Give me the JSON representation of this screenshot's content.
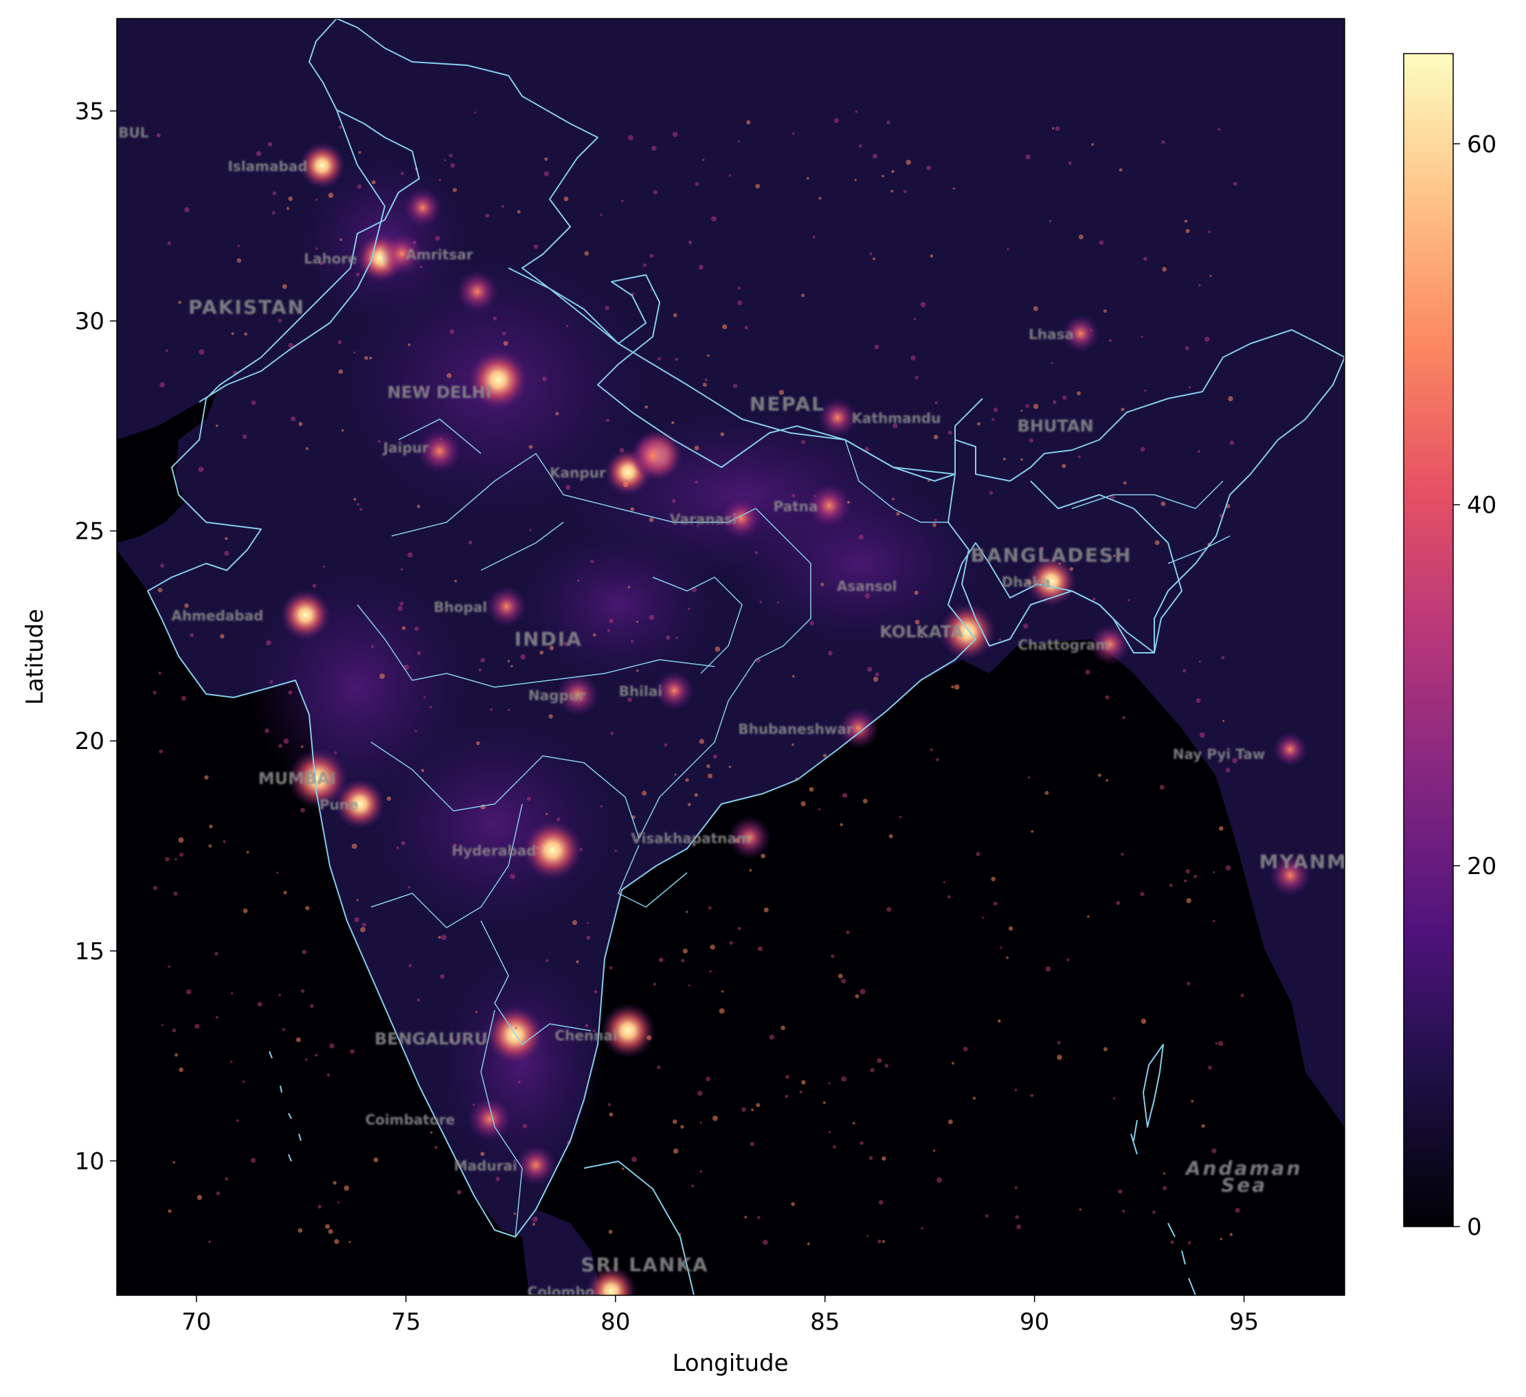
{
  "chart_data": {
    "type": "heatmap",
    "title": "",
    "xlabel": "Longitude",
    "ylabel": "Latitude",
    "xlim": [
      68.1,
      97.4
    ],
    "ylim": [
      6.8,
      37.2
    ],
    "xticks": [
      70,
      75,
      80,
      85,
      90,
      95
    ],
    "yticks": [
      10,
      15,
      20,
      25,
      30,
      35
    ],
    "colormap": "magma",
    "colorbar": {
      "min": 0,
      "max": 65,
      "ticks": [
        0,
        20,
        40,
        60
      ]
    },
    "background_color": "#180f3d",
    "border_color": "#87ceeb",
    "grid": false,
    "bright_spots": [
      {
        "lon": 77.2,
        "lat": 28.6,
        "value": 62
      },
      {
        "lon": 73.0,
        "lat": 33.7,
        "value": 45
      },
      {
        "lon": 74.4,
        "lat": 31.5,
        "value": 48
      },
      {
        "lon": 74.9,
        "lat": 31.6,
        "value": 40
      },
      {
        "lon": 75.8,
        "lat": 26.9,
        "value": 42
      },
      {
        "lon": 80.3,
        "lat": 26.4,
        "value": 45
      },
      {
        "lon": 81.0,
        "lat": 26.8,
        "value": 50
      },
      {
        "lon": 83.0,
        "lat": 25.3,
        "value": 38
      },
      {
        "lon": 85.1,
        "lat": 25.6,
        "value": 42
      },
      {
        "lon": 88.4,
        "lat": 22.6,
        "value": 58
      },
      {
        "lon": 90.4,
        "lat": 23.8,
        "value": 50
      },
      {
        "lon": 91.8,
        "lat": 22.3,
        "value": 38
      },
      {
        "lon": 72.6,
        "lat": 23.0,
        "value": 50
      },
      {
        "lon": 77.4,
        "lat": 23.2,
        "value": 38
      },
      {
        "lon": 79.1,
        "lat": 21.1,
        "value": 40
      },
      {
        "lon": 81.4,
        "lat": 21.2,
        "value": 36
      },
      {
        "lon": 85.8,
        "lat": 20.3,
        "value": 38
      },
      {
        "lon": 72.9,
        "lat": 19.1,
        "value": 62
      },
      {
        "lon": 73.9,
        "lat": 18.5,
        "value": 50
      },
      {
        "lon": 78.5,
        "lat": 17.4,
        "value": 62
      },
      {
        "lon": 83.2,
        "lat": 17.7,
        "value": 40
      },
      {
        "lon": 77.6,
        "lat": 13.0,
        "value": 60
      },
      {
        "lon": 80.3,
        "lat": 13.1,
        "value": 55
      },
      {
        "lon": 77.0,
        "lat": 11.0,
        "value": 42
      },
      {
        "lon": 78.1,
        "lat": 9.9,
        "value": 38
      },
      {
        "lon": 79.9,
        "lat": 6.9,
        "value": 50
      },
      {
        "lon": 85.3,
        "lat": 27.7,
        "value": 36
      },
      {
        "lon": 91.1,
        "lat": 29.7,
        "value": 34
      },
      {
        "lon": 96.1,
        "lat": 16.8,
        "value": 40
      },
      {
        "lon": 96.1,
        "lat": 19.8,
        "value": 30
      },
      {
        "lon": 80.9,
        "lat": 26.8,
        "value": 44
      },
      {
        "lon": 75.4,
        "lat": 32.7,
        "value": 35
      },
      {
        "lon": 76.7,
        "lat": 30.7,
        "value": 40
      }
    ]
  },
  "place_labels": [
    {
      "text": "Islamabad",
      "lon": 71.7,
      "lat": 33.7,
      "size": "small"
    },
    {
      "text": "BUL",
      "lon": 68.5,
      "lat": 34.5,
      "size": "small"
    },
    {
      "text": "Lahore",
      "lon": 73.2,
      "lat": 31.5,
      "size": "small"
    },
    {
      "text": "Amritsar",
      "lon": 75.8,
      "lat": 31.6,
      "size": "small"
    },
    {
      "text": "PAKISTAN",
      "lon": 71.2,
      "lat": 30.3,
      "size": "large"
    },
    {
      "text": "NEW DELHI",
      "lon": 75.8,
      "lat": 28.3,
      "size": "medium"
    },
    {
      "text": "Jaipur",
      "lon": 75.0,
      "lat": 27.0,
      "size": "small"
    },
    {
      "text": "Kanpur",
      "lon": 79.1,
      "lat": 26.4,
      "size": "small"
    },
    {
      "text": "Varanasi",
      "lon": 82.1,
      "lat": 25.3,
      "size": "small"
    },
    {
      "text": "Patna",
      "lon": 84.3,
      "lat": 25.6,
      "size": "small"
    },
    {
      "text": "NEPAL",
      "lon": 84.1,
      "lat": 28.0,
      "size": "large"
    },
    {
      "text": "Kathmandu",
      "lon": 86.7,
      "lat": 27.7,
      "size": "small"
    },
    {
      "text": "BHUTAN",
      "lon": 90.5,
      "lat": 27.5,
      "size": "medium"
    },
    {
      "text": "Lhasa",
      "lon": 90.4,
      "lat": 29.7,
      "size": "small"
    },
    {
      "text": "BANGLADESH",
      "lon": 90.4,
      "lat": 24.4,
      "size": "large"
    },
    {
      "text": "Dhaka",
      "lon": 89.8,
      "lat": 23.8,
      "size": "small"
    },
    {
      "text": "Asansol",
      "lon": 86.0,
      "lat": 23.7,
      "size": "small"
    },
    {
      "text": "KOLKATA",
      "lon": 87.3,
      "lat": 22.6,
      "size": "medium"
    },
    {
      "text": "Chattogram",
      "lon": 90.7,
      "lat": 22.3,
      "size": "small"
    },
    {
      "text": "Ahmedabad",
      "lon": 70.5,
      "lat": 23.0,
      "size": "small"
    },
    {
      "text": "Bhopal",
      "lon": 76.3,
      "lat": 23.2,
      "size": "small"
    },
    {
      "text": "INDIA",
      "lon": 78.4,
      "lat": 22.4,
      "size": "large"
    },
    {
      "text": "Nagpur",
      "lon": 78.6,
      "lat": 21.1,
      "size": "small"
    },
    {
      "text": "Bhilai",
      "lon": 80.6,
      "lat": 21.2,
      "size": "small"
    },
    {
      "text": "Bhubaneshwar",
      "lon": 84.3,
      "lat": 20.3,
      "size": "small"
    },
    {
      "text": "Nay Pyi Taw",
      "lon": 94.4,
      "lat": 19.7,
      "size": "small"
    },
    {
      "text": "MUMBAI",
      "lon": 72.4,
      "lat": 19.1,
      "size": "medium"
    },
    {
      "text": "Pune",
      "lon": 73.4,
      "lat": 18.5,
      "size": "small"
    },
    {
      "text": "Hyderabad",
      "lon": 77.1,
      "lat": 17.4,
      "size": "small"
    },
    {
      "text": "Visakhapatnam",
      "lon": 81.8,
      "lat": 17.7,
      "size": "small"
    },
    {
      "text": "MYANMAR",
      "lon": 96.8,
      "lat": 17.1,
      "size": "large"
    },
    {
      "text": "BENGALURU",
      "lon": 75.6,
      "lat": 12.9,
      "size": "medium"
    },
    {
      "text": "Chennai",
      "lon": 79.3,
      "lat": 13.0,
      "size": "small"
    },
    {
      "text": "Coimbatore",
      "lon": 75.1,
      "lat": 11.0,
      "size": "small"
    },
    {
      "text": "Madurai",
      "lon": 76.9,
      "lat": 9.9,
      "size": "small"
    },
    {
      "text": "SRI LANKA",
      "lon": 80.7,
      "lat": 7.5,
      "size": "large"
    },
    {
      "text": "Colombo",
      "lon": 78.7,
      "lat": 6.9,
      "size": "small"
    },
    {
      "text": "Andaman",
      "lon": 95.0,
      "lat": 9.8,
      "size": "sea"
    },
    {
      "text": "Sea",
      "lon": 95.0,
      "lat": 9.4,
      "size": "sea"
    }
  ]
}
